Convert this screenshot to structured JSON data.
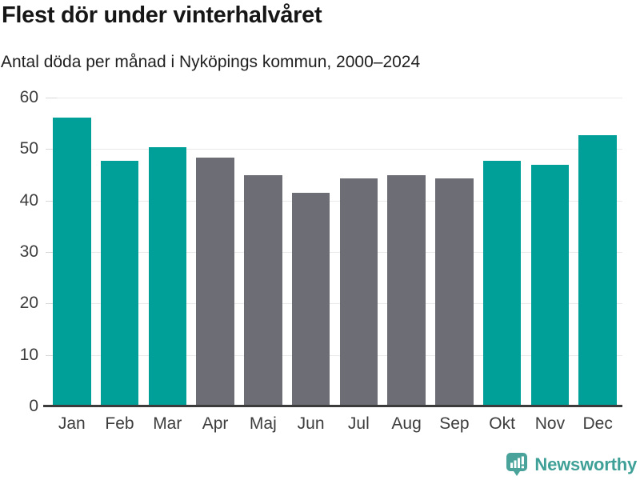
{
  "title": "Flest dör under vinterhalvåret",
  "subtitle": "Antal döda per månad i Nyköpings kommun, 2000–2024",
  "chart_data": {
    "type": "bar",
    "title": "Flest dör under vinterhalvåret",
    "subtitle": "Antal döda per månad i Nyköpings kommun, 2000–2024",
    "categories": [
      "Jan",
      "Feb",
      "Mar",
      "Apr",
      "Maj",
      "Jun",
      "Jul",
      "Aug",
      "Sep",
      "Okt",
      "Nov",
      "Dec"
    ],
    "values": [
      56.1,
      47.7,
      50.4,
      48.4,
      44.9,
      41.5,
      44.3,
      44.9,
      44.3,
      47.7,
      46.9,
      52.7
    ],
    "bar_color_keys": [
      "winter",
      "winter",
      "winter",
      "summer",
      "summer",
      "summer",
      "summer",
      "summer",
      "summer",
      "winter",
      "winter",
      "winter"
    ],
    "colors": {
      "winter": "#00A099",
      "summer": "#6D6D75"
    },
    "xlabel": "",
    "ylabel": "",
    "ylim": [
      0,
      60
    ],
    "yticks": [
      0,
      10,
      20,
      30,
      40,
      50,
      60
    ],
    "grid": "horizontal",
    "legend": "none"
  },
  "footer": {
    "brand": "Newsworthy",
    "brand_color": "#3FA097",
    "logo_icon": "newsworthy-barchart-bubble-icon"
  }
}
